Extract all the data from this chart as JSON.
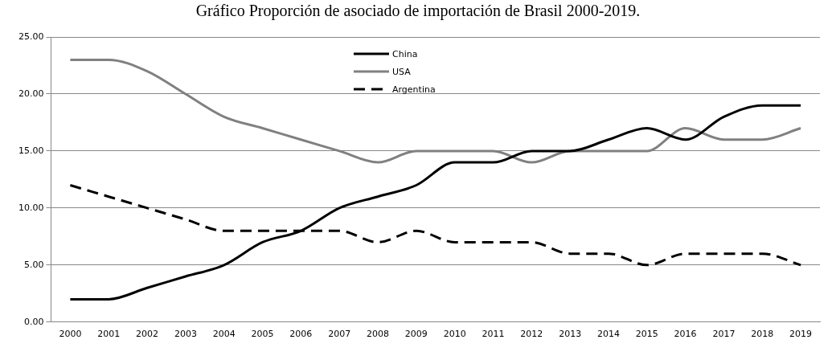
{
  "chart_data": {
    "type": "line",
    "title": "Gráfico Proporción de asociado de importación de Brasil 2000-2019.",
    "categories": [
      "2000",
      "2001",
      "2002",
      "2003",
      "2004",
      "2005",
      "2006",
      "2007",
      "2008",
      "2009",
      "2010",
      "2011",
      "2012",
      "2013",
      "2014",
      "2015",
      "2016",
      "2017",
      "2018",
      "2019"
    ],
    "series": [
      {
        "name": "China",
        "color": "#000000",
        "line_style": "solid",
        "values": [
          2,
          2,
          3,
          4,
          5,
          7,
          8,
          10,
          11,
          12,
          14,
          14,
          15,
          15,
          16,
          17,
          16,
          18,
          19,
          19
        ]
      },
      {
        "name": "USA",
        "color": "#808080",
        "line_style": "solid",
        "values": [
          23,
          23,
          22,
          20,
          18,
          17,
          16,
          15,
          14,
          15,
          15,
          15,
          14,
          15,
          15,
          15,
          17,
          16,
          16,
          17
        ]
      },
      {
        "name": "Argentina",
        "color": "#000000",
        "line_style": "dashed",
        "values": [
          12,
          11,
          10,
          9,
          8,
          8,
          8,
          8,
          7,
          8,
          7,
          7,
          7,
          6,
          6,
          5,
          6,
          6,
          6,
          5
        ]
      }
    ],
    "ylim": [
      0,
      25
    ],
    "yticks": [
      {
        "value": 0,
        "label": "0.00"
      },
      {
        "value": 5,
        "label": "5.00"
      },
      {
        "value": 10,
        "label": "10.00"
      },
      {
        "value": 15,
        "label": "15.00"
      },
      {
        "value": 20,
        "label": "20.00"
      },
      {
        "value": 25,
        "label": "25.00"
      }
    ],
    "grid": "y",
    "legend": "top",
    "marker": "none"
  }
}
